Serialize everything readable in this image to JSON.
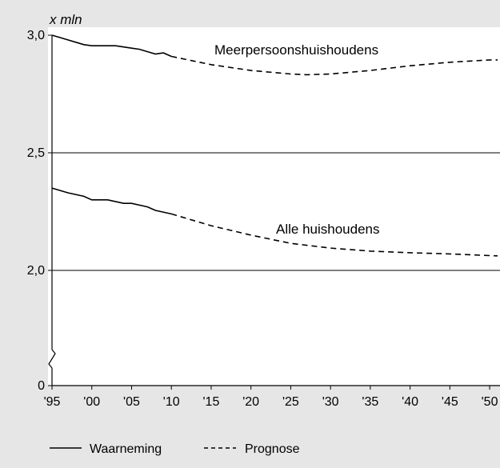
{
  "chart_data": {
    "type": "line",
    "title": "",
    "unit_label": "x mln",
    "xlabel": "",
    "ylabel": "",
    "xlim": [
      1995,
      2051
    ],
    "ylim": [
      0,
      3.0
    ],
    "y_axis_break": true,
    "yticks": [
      {
        "value": 0,
        "label": "0"
      },
      {
        "value": 2.0,
        "label": "2,0"
      },
      {
        "value": 2.5,
        "label": "2,5"
      },
      {
        "value": 3.0,
        "label": "3,0"
      }
    ],
    "xticks": [
      {
        "value": 1995,
        "label": "'95"
      },
      {
        "value": 2000,
        "label": "'00"
      },
      {
        "value": 2005,
        "label": "'05"
      },
      {
        "value": 2010,
        "label": "'10"
      },
      {
        "value": 2015,
        "label": "'15"
      },
      {
        "value": 2020,
        "label": "'20"
      },
      {
        "value": 2025,
        "label": "'25"
      },
      {
        "value": 2030,
        "label": "'30"
      },
      {
        "value": 2035,
        "label": "'35"
      },
      {
        "value": 2040,
        "label": "'40"
      },
      {
        "value": 2045,
        "label": "'45"
      },
      {
        "value": 2050,
        "label": "'50"
      }
    ],
    "gridlines_y": [
      2.0,
      2.5
    ],
    "series": [
      {
        "name": "Meerpersoonshuishoudens",
        "observed": [
          [
            1995,
            3.0
          ],
          [
            1996,
            2.99
          ],
          [
            1997,
            2.98
          ],
          [
            1998,
            2.97
          ],
          [
            1999,
            2.96
          ],
          [
            2000,
            2.955
          ],
          [
            2001,
            2.955
          ],
          [
            2002,
            2.955
          ],
          [
            2003,
            2.955
          ],
          [
            2004,
            2.95
          ],
          [
            2005,
            2.945
          ],
          [
            2006,
            2.94
          ],
          [
            2007,
            2.93
          ],
          [
            2008,
            2.92
          ],
          [
            2009,
            2.925
          ],
          [
            2010,
            2.91
          ]
        ],
        "forecast": [
          [
            2010,
            2.91
          ],
          [
            2015,
            2.875
          ],
          [
            2020,
            2.85
          ],
          [
            2025,
            2.835
          ],
          [
            2027,
            2.832
          ],
          [
            2030,
            2.835
          ],
          [
            2035,
            2.85
          ],
          [
            2040,
            2.87
          ],
          [
            2045,
            2.885
          ],
          [
            2050,
            2.895
          ],
          [
            2051,
            2.895
          ]
        ]
      },
      {
        "name": "Alle huishoudens",
        "observed": [
          [
            1995,
            2.35
          ],
          [
            1997,
            2.33
          ],
          [
            1999,
            2.315
          ],
          [
            2000,
            2.3
          ],
          [
            2002,
            2.3
          ],
          [
            2004,
            2.285
          ],
          [
            2005,
            2.285
          ],
          [
            2007,
            2.27
          ],
          [
            2008,
            2.255
          ],
          [
            2010,
            2.24
          ]
        ],
        "forecast": [
          [
            2010,
            2.24
          ],
          [
            2015,
            2.19
          ],
          [
            2020,
            2.15
          ],
          [
            2025,
            2.115
          ],
          [
            2030,
            2.095
          ],
          [
            2035,
            2.082
          ],
          [
            2040,
            2.075
          ],
          [
            2045,
            2.07
          ],
          [
            2050,
            2.063
          ],
          [
            2051,
            2.062
          ]
        ]
      }
    ],
    "legend": {
      "placement": "bottom",
      "items": [
        {
          "style": "solid",
          "label": "Waarneming"
        },
        {
          "style": "dashed",
          "label": "Prognose"
        }
      ]
    }
  }
}
